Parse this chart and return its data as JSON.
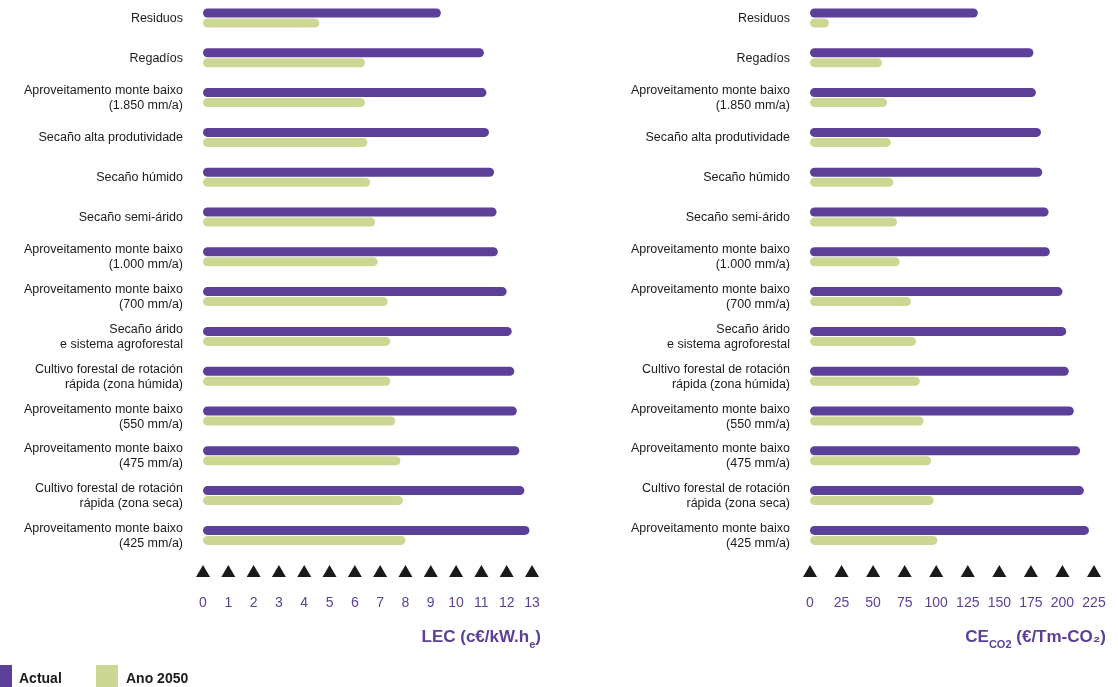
{
  "chart_data": [
    {
      "type": "bar",
      "orientation": "horizontal",
      "xlabel": "LEC (c€/kW.h$_{e}$)",
      "categories": [
        "Residuos",
        "Regadíos",
        "Aproveitamento monte baixo\n(1.850 mm/a)",
        "Secaño alta produtividade",
        "Secaño húmido",
        "Secaño semi-árido",
        "Aproveitamento monte baixo\n(1.000 mm/a)",
        "Aproveitamento monte baixo\n(700 mm/a)",
        "Secaño árido\ne sistema agroforestal",
        "Cultivo forestal de rotación\nrápida (zona húmida)",
        "Aproveitamento monte baixo\n(550 mm/a)",
        "Aproveitamento monte baixo\n(475 mm/a)",
        "Cultivo forestal de rotación\nrápida (zona seca)",
        "Aproveitamento monte baixo\n(425 mm/a)"
      ],
      "series": [
        {
          "name": "Actual",
          "color": "#5b3f98",
          "values": [
            9.4,
            11.1,
            11.2,
            11.3,
            11.5,
            11.6,
            11.65,
            12.0,
            12.2,
            12.3,
            12.4,
            12.5,
            12.7,
            12.9
          ]
        },
        {
          "name": "Ano 2050",
          "color": "#cdd794",
          "values": [
            4.6,
            6.4,
            6.4,
            6.5,
            6.6,
            6.8,
            6.9,
            7.3,
            7.4,
            7.4,
            7.6,
            7.8,
            7.9,
            8.0
          ]
        }
      ],
      "xlim": [
        0,
        13
      ],
      "xticks": [
        0,
        1,
        2,
        3,
        4,
        5,
        6,
        7,
        8,
        9,
        10,
        11,
        12,
        13
      ],
      "legend": "bottom left"
    },
    {
      "type": "bar",
      "orientation": "horizontal",
      "xlabel": "CE$_{CO2}$ (€/Tm-CO₂)",
      "categories": [
        "Residuos",
        "Regadíos",
        "Aproveitamento monte baixo\n(1.850 mm/a)",
        "Secaño alta produtividade",
        "Secaño húmido",
        "Secaño semi-árido",
        "Aproveitamento monte baixo\n(1.000 mm/a)",
        "Aproveitamento monte baixo\n(700 mm/a)",
        "Secaño árido\ne sistema agroforestal",
        "Cultivo forestal de rotación\nrápida (zona húmida)",
        "Aproveitamento monte baixo\n(550 mm/a)",
        "Aproveitamento monte baixo\n(475 mm/a)",
        "Cultivo forestal de rotación\nrápida (zona seca)",
        "Aproveitamento monte baixo\n(425 mm/a)"
      ],
      "series": [
        {
          "color": "#5b3f98",
          "values": [
            133,
            177,
            179,
            183,
            184,
            189,
            190,
            200,
            203,
            205,
            209,
            214,
            217,
            221
          ]
        },
        {
          "color": "#cdd794",
          "values": [
            15,
            57,
            61,
            64,
            66,
            69,
            71,
            80,
            84,
            87,
            90,
            96,
            98,
            101
          ]
        }
      ],
      "xlim": [
        0,
        225
      ],
      "xticks": [
        0,
        25,
        50,
        75,
        100,
        125,
        150,
        175,
        200,
        225
      ]
    }
  ]
}
